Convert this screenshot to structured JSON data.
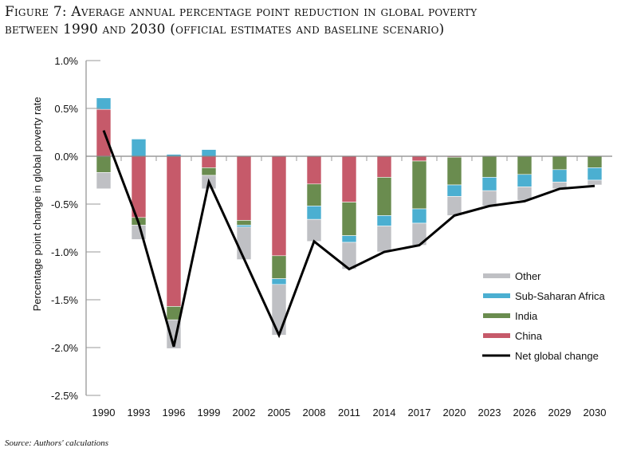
{
  "title_line1": "Figure 7: Average annual percentage point reduction in global poverty",
  "title_line2": "between 1990 and 2030 (official estimates and baseline scenario)",
  "source": "Source: Authors' calculations",
  "chart_data": {
    "type": "bar",
    "stacked": true,
    "title": "Figure 7: Average annual percentage point reduction in global poverty between 1990 and 2030 (official estimates and baseline scenario)",
    "xlabel": "",
    "ylabel": "Percentage point change in global poverty rate",
    "ylim": [
      -2.5,
      1.0
    ],
    "yticks": [
      1.0,
      0.5,
      0.0,
      -0.5,
      -1.0,
      -1.5,
      -2.0,
      -2.5
    ],
    "ytick_labels": [
      "1.0%",
      "0.5%",
      "0.0%",
      "-0.5%",
      "-1.0%",
      "-1.5%",
      "-2.0%",
      "-2.5%"
    ],
    "grid": false,
    "legend_position": "bottom-right",
    "categories": [
      "1990",
      "1993",
      "1996",
      "1999",
      "2002",
      "2005",
      "2008",
      "2011",
      "2014",
      "2017",
      "2020",
      "2023",
      "2026",
      "2029",
      "2030"
    ],
    "series": [
      {
        "name": "China",
        "color": "#c65a6a",
        "values": [
          0.49,
          -0.64,
          -1.57,
          -0.12,
          -0.67,
          -1.04,
          -0.29,
          -0.48,
          -0.22,
          -0.05,
          -0.01,
          0.0,
          0.0,
          0.0,
          0.0
        ]
      },
      {
        "name": "India",
        "color": "#6a8c4f",
        "values": [
          -0.17,
          -0.08,
          -0.14,
          -0.08,
          -0.05,
          -0.24,
          -0.23,
          -0.35,
          -0.4,
          -0.5,
          -0.29,
          -0.22,
          -0.19,
          -0.14,
          -0.12
        ]
      },
      {
        "name": "Sub-Saharan Africa",
        "color": "#4bafd1",
        "values": [
          0.12,
          0.18,
          0.02,
          0.07,
          -0.02,
          -0.06,
          -0.14,
          -0.07,
          -0.11,
          -0.15,
          -0.12,
          -0.14,
          -0.13,
          -0.13,
          -0.13
        ]
      },
      {
        "name": "Other",
        "color": "#bfc0c4",
        "values": [
          -0.17,
          -0.15,
          -0.3,
          -0.14,
          -0.34,
          -0.53,
          -0.23,
          -0.28,
          -0.27,
          -0.23,
          -0.2,
          -0.16,
          -0.14,
          -0.07,
          -0.05
        ]
      }
    ],
    "line_series": {
      "name": "Net global change",
      "color": "#000000",
      "values": [
        0.27,
        -0.7,
        -1.99,
        -0.27,
        -1.07,
        -1.87,
        -0.89,
        -1.18,
        -1.0,
        -0.93,
        -0.62,
        -0.52,
        -0.47,
        -0.34,
        -0.31
      ]
    },
    "legend": [
      "Other",
      "Sub-Saharan Africa",
      "India",
      "China",
      "Net global change"
    ]
  }
}
